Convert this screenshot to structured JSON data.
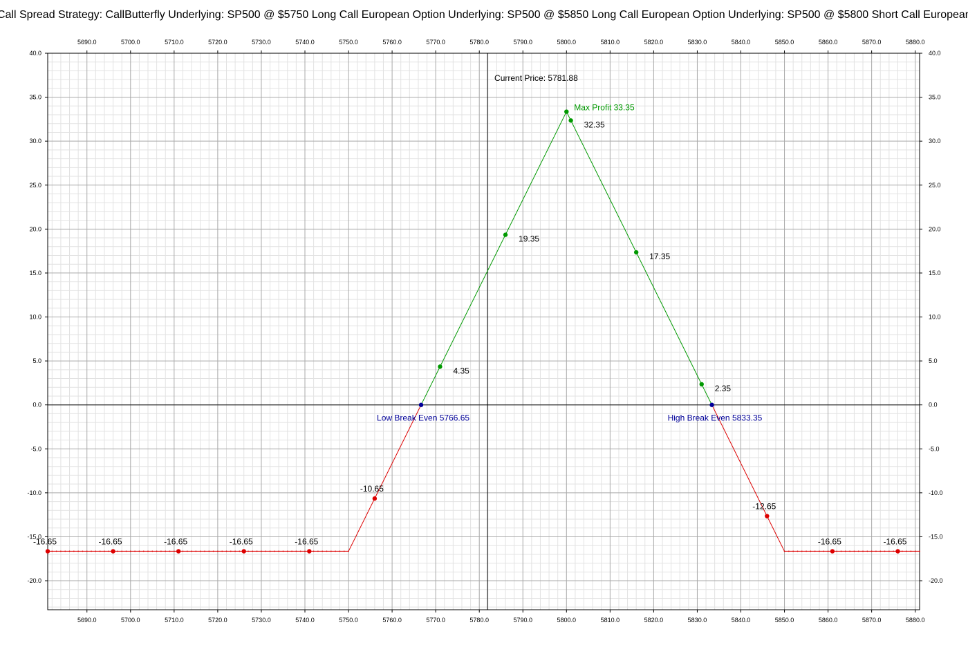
{
  "window": {
    "title": "Call Spread Strategy: CallButterfly  Underlying: SP500 @ $5750 Long Call European Option  Underlying: SP500 @ $5850 Long Call European Option  Underlying: SP500 @ $5800 Short Call European Option"
  },
  "chart_data": {
    "type": "line",
    "title": "Call Spread Strategy: CallButterfly  Underlying: SP500 @ $5750 Long Call European Option  Underlying: SP500 @ $5850 Long Call European Option  Underlying: SP500 @ $5800 Short Call European Option",
    "xlabel": "",
    "ylabel": "",
    "xlim": [
      5681,
      5881
    ],
    "ylim": [
      -23.3,
      40.0
    ],
    "grid": true,
    "x_ticks": [
      "5690.0",
      "5700.0",
      "5710.0",
      "5720.0",
      "5730.0",
      "5740.0",
      "5750.0",
      "5760.0",
      "5770.0",
      "5780.0",
      "5790.0",
      "5800.0",
      "5810.0",
      "5820.0",
      "5830.0",
      "5840.0",
      "5850.0",
      "5860.0",
      "5870.0",
      "5880.0"
    ],
    "y_ticks": [
      "40.0",
      "35.0",
      "30.0",
      "25.0",
      "20.0",
      "15.0",
      "10.0",
      "5.0",
      "0.0",
      "-5.0",
      "-10.0",
      "-15.0",
      "-20.0"
    ],
    "payoff_curve": {
      "x": [
        5681,
        5750,
        5766.65,
        5800,
        5833.35,
        5850,
        5881
      ],
      "y": [
        -16.65,
        -16.65,
        0,
        33.35,
        0,
        -16.65,
        -16.65
      ]
    },
    "points": [
      {
        "x": 5681,
        "y": -16.65,
        "label": "-16.65",
        "color": "#dd0000"
      },
      {
        "x": 5696,
        "y": -16.65,
        "label": "-16.65",
        "color": "#dd0000"
      },
      {
        "x": 5711,
        "y": -16.65,
        "label": "-16.65",
        "color": "#dd0000"
      },
      {
        "x": 5726,
        "y": -16.65,
        "label": "-16.65",
        "color": "#dd0000"
      },
      {
        "x": 5741,
        "y": -16.65,
        "label": "-16.65",
        "color": "#dd0000"
      },
      {
        "x": 5756,
        "y": -10.65,
        "label": "-10.65",
        "color": "#dd0000"
      },
      {
        "x": 5771,
        "y": 4.35,
        "label": "4.35",
        "color": "#009900"
      },
      {
        "x": 5786,
        "y": 19.35,
        "label": "19.35",
        "color": "#009900"
      },
      {
        "x": 5801,
        "y": 32.35,
        "label": "32.35",
        "color": "#009900"
      },
      {
        "x": 5816,
        "y": 17.35,
        "label": "17.35",
        "color": "#009900"
      },
      {
        "x": 5831,
        "y": 2.35,
        "label": "2.35",
        "color": "#009900"
      },
      {
        "x": 5846,
        "y": -12.65,
        "label": "-12.65",
        "color": "#dd0000"
      },
      {
        "x": 5861,
        "y": -16.65,
        "label": "-16.65",
        "color": "#dd0000"
      },
      {
        "x": 5876,
        "y": -16.65,
        "label": "-16.65",
        "color": "#dd0000"
      }
    ],
    "annotations": {
      "current_price": {
        "x": 5781.88,
        "label": "Current Price: 5781.88"
      },
      "max_profit": {
        "x": 5800,
        "y": 33.35,
        "label": "Max Profit  33.35",
        "color": "#009900"
      },
      "low_break_even": {
        "x": 5766.65,
        "y": 0,
        "label": "Low Break Even  5766.65",
        "color": "#000099"
      },
      "high_break_even": {
        "x": 5833.35,
        "y": 0,
        "label": "High Break Even  5833.35",
        "color": "#000099"
      }
    },
    "colors": {
      "profit": "#009900",
      "loss": "#dd0000",
      "break_even": "#000099"
    }
  }
}
